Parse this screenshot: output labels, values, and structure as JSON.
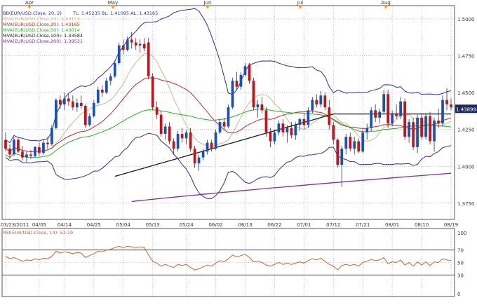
{
  "chart_data": {
    "type": "candlestick",
    "instrument": "EUR/USD",
    "legend": [
      {
        "name": "BB(EUR/USD.Close, 20, 2)",
        "extra": "TL: 1.45235   BL: 1.41095   AL: 1.43165",
        "color": "#2e3192"
      },
      {
        "name": "MVA(EUR/USD.Close,10): 1.43153",
        "color": "#c8b88c"
      },
      {
        "name": "MVA(EUR/USD.Close,20): 1.43165",
        "color": "#c0282d"
      },
      {
        "name": "MVA(EUR/USD.Close,50): 1.43014",
        "color": "#22b322"
      },
      {
        "name": "MVA(EUR/USD.Close,100): 1.43584",
        "color": "#1a1a1a"
      },
      {
        "name": "MVA(EUR/USD.Close,200): 1.39531",
        "color": "#7a2fa8"
      }
    ],
    "month_labels": [
      "Apr",
      "May",
      "Jun",
      "Jul",
      "Aug"
    ],
    "x_labels": [
      "03/23/2011",
      "04/05",
      "04/14",
      "04/25",
      "05/04",
      "05/13",
      "05/24",
      "06/02",
      "06/13",
      "06/22",
      "07/01",
      "07/12",
      "07/21",
      "08/01",
      "08/10",
      "08/19"
    ],
    "y_ticks": [
      "1.5000",
      "1.4750",
      "1.4500",
      "1.4250",
      "1.4000",
      "1.3750"
    ],
    "ylim": [
      1.364,
      1.509
    ],
    "last_price": "1.43899",
    "candles": [
      {
        "o": 1.418,
        "h": 1.423,
        "l": 1.41,
        "c": 1.412
      },
      {
        "o": 1.412,
        "h": 1.415,
        "l": 1.405,
        "c": 1.408
      },
      {
        "o": 1.408,
        "h": 1.42,
        "l": 1.407,
        "c": 1.418
      },
      {
        "o": 1.418,
        "h": 1.419,
        "l": 1.409,
        "c": 1.41
      },
      {
        "o": 1.41,
        "h": 1.414,
        "l": 1.404,
        "c": 1.406
      },
      {
        "o": 1.406,
        "h": 1.41,
        "l": 1.403,
        "c": 1.408
      },
      {
        "o": 1.408,
        "h": 1.411,
        "l": 1.405,
        "c": 1.407
      },
      {
        "o": 1.407,
        "h": 1.414,
        "l": 1.406,
        "c": 1.413
      },
      {
        "o": 1.413,
        "h": 1.416,
        "l": 1.407,
        "c": 1.409
      },
      {
        "o": 1.409,
        "h": 1.418,
        "l": 1.408,
        "c": 1.416
      },
      {
        "o": 1.416,
        "h": 1.42,
        "l": 1.412,
        "c": 1.415
      },
      {
        "o": 1.415,
        "h": 1.428,
        "l": 1.414,
        "c": 1.426
      },
      {
        "o": 1.426,
        "h": 1.446,
        "l": 1.425,
        "c": 1.445
      },
      {
        "o": 1.445,
        "h": 1.448,
        "l": 1.439,
        "c": 1.442
      },
      {
        "o": 1.442,
        "h": 1.45,
        "l": 1.438,
        "c": 1.446
      },
      {
        "o": 1.446,
        "h": 1.449,
        "l": 1.441,
        "c": 1.444
      },
      {
        "o": 1.444,
        "h": 1.448,
        "l": 1.438,
        "c": 1.44
      },
      {
        "o": 1.44,
        "h": 1.446,
        "l": 1.437,
        "c": 1.443
      },
      {
        "o": 1.443,
        "h": 1.448,
        "l": 1.439,
        "c": 1.441
      },
      {
        "o": 1.441,
        "h": 1.442,
        "l": 1.426,
        "c": 1.428
      },
      {
        "o": 1.428,
        "h": 1.436,
        "l": 1.427,
        "c": 1.434
      },
      {
        "o": 1.434,
        "h": 1.445,
        "l": 1.433,
        "c": 1.443
      },
      {
        "o": 1.443,
        "h": 1.454,
        "l": 1.442,
        "c": 1.452
      },
      {
        "o": 1.452,
        "h": 1.455,
        "l": 1.447,
        "c": 1.45
      },
      {
        "o": 1.45,
        "h": 1.46,
        "l": 1.449,
        "c": 1.458
      },
      {
        "o": 1.458,
        "h": 1.463,
        "l": 1.455,
        "c": 1.461
      },
      {
        "o": 1.461,
        "h": 1.472,
        "l": 1.46,
        "c": 1.47
      },
      {
        "o": 1.47,
        "h": 1.484,
        "l": 1.469,
        "c": 1.482
      },
      {
        "o": 1.482,
        "h": 1.486,
        "l": 1.476,
        "c": 1.479
      },
      {
        "o": 1.479,
        "h": 1.488,
        "l": 1.478,
        "c": 1.486
      },
      {
        "o": 1.486,
        "h": 1.491,
        "l": 1.48,
        "c": 1.484
      },
      {
        "o": 1.484,
        "h": 1.487,
        "l": 1.479,
        "c": 1.482
      },
      {
        "o": 1.482,
        "h": 1.486,
        "l": 1.477,
        "c": 1.483
      },
      {
        "o": 1.483,
        "h": 1.487,
        "l": 1.478,
        "c": 1.48
      },
      {
        "o": 1.484,
        "h": 1.487,
        "l": 1.459,
        "c": 1.461
      },
      {
        "o": 1.461,
        "h": 1.463,
        "l": 1.438,
        "c": 1.44
      },
      {
        "o": 1.44,
        "h": 1.444,
        "l": 1.432,
        "c": 1.435
      },
      {
        "o": 1.435,
        "h": 1.438,
        "l": 1.42,
        "c": 1.422
      },
      {
        "o": 1.422,
        "h": 1.429,
        "l": 1.418,
        "c": 1.427
      },
      {
        "o": 1.427,
        "h": 1.43,
        "l": 1.415,
        "c": 1.417
      },
      {
        "o": 1.417,
        "h": 1.419,
        "l": 1.408,
        "c": 1.412
      },
      {
        "o": 1.412,
        "h": 1.424,
        "l": 1.41,
        "c": 1.422
      },
      {
        "o": 1.422,
        "h": 1.426,
        "l": 1.416,
        "c": 1.419
      },
      {
        "o": 1.419,
        "h": 1.425,
        "l": 1.415,
        "c": 1.423
      },
      {
        "o": 1.423,
        "h": 1.426,
        "l": 1.41,
        "c": 1.412
      },
      {
        "o": 1.412,
        "h": 1.414,
        "l": 1.399,
        "c": 1.402
      },
      {
        "o": 1.402,
        "h": 1.408,
        "l": 1.397,
        "c": 1.406
      },
      {
        "o": 1.406,
        "h": 1.412,
        "l": 1.404,
        "c": 1.41
      },
      {
        "o": 1.41,
        "h": 1.418,
        "l": 1.408,
        "c": 1.416
      },
      {
        "o": 1.416,
        "h": 1.418,
        "l": 1.41,
        "c": 1.412
      },
      {
        "o": 1.412,
        "h": 1.425,
        "l": 1.411,
        "c": 1.423
      },
      {
        "o": 1.423,
        "h": 1.432,
        "l": 1.422,
        "c": 1.43
      },
      {
        "o": 1.43,
        "h": 1.433,
        "l": 1.425,
        "c": 1.427
      },
      {
        "o": 1.427,
        "h": 1.442,
        "l": 1.426,
        "c": 1.44
      },
      {
        "o": 1.44,
        "h": 1.46,
        "l": 1.439,
        "c": 1.458
      },
      {
        "o": 1.458,
        "h": 1.464,
        "l": 1.452,
        "c": 1.454
      },
      {
        "o": 1.454,
        "h": 1.464,
        "l": 1.452,
        "c": 1.462
      },
      {
        "o": 1.462,
        "h": 1.47,
        "l": 1.461,
        "c": 1.468
      },
      {
        "o": 1.469,
        "h": 1.47,
        "l": 1.456,
        "c": 1.458
      },
      {
        "o": 1.458,
        "h": 1.46,
        "l": 1.438,
        "c": 1.44
      },
      {
        "o": 1.44,
        "h": 1.445,
        "l": 1.433,
        "c": 1.442
      },
      {
        "o": 1.442,
        "h": 1.447,
        "l": 1.436,
        "c": 1.438
      },
      {
        "o": 1.438,
        "h": 1.44,
        "l": 1.42,
        "c": 1.423
      },
      {
        "o": 1.423,
        "h": 1.426,
        "l": 1.413,
        "c": 1.417
      },
      {
        "o": 1.417,
        "h": 1.425,
        "l": 1.415,
        "c": 1.423
      },
      {
        "o": 1.423,
        "h": 1.431,
        "l": 1.421,
        "c": 1.429
      },
      {
        "o": 1.429,
        "h": 1.432,
        "l": 1.42,
        "c": 1.423
      },
      {
        "o": 1.423,
        "h": 1.428,
        "l": 1.416,
        "c": 1.426
      },
      {
        "o": 1.426,
        "h": 1.43,
        "l": 1.419,
        "c": 1.421
      },
      {
        "o": 1.421,
        "h": 1.43,
        "l": 1.418,
        "c": 1.428
      },
      {
        "o": 1.428,
        "h": 1.433,
        "l": 1.424,
        "c": 1.432
      },
      {
        "o": 1.432,
        "h": 1.436,
        "l": 1.425,
        "c": 1.428
      },
      {
        "o": 1.428,
        "h": 1.44,
        "l": 1.426,
        "c": 1.438
      },
      {
        "o": 1.438,
        "h": 1.447,
        "l": 1.436,
        "c": 1.445
      },
      {
        "o": 1.445,
        "h": 1.449,
        "l": 1.44,
        "c": 1.442
      },
      {
        "o": 1.442,
        "h": 1.451,
        "l": 1.44,
        "c": 1.448
      },
      {
        "o": 1.448,
        "h": 1.45,
        "l": 1.438,
        "c": 1.44
      },
      {
        "o": 1.44,
        "h": 1.445,
        "l": 1.425,
        "c": 1.428
      },
      {
        "o": 1.428,
        "h": 1.43,
        "l": 1.415,
        "c": 1.418
      },
      {
        "o": 1.418,
        "h": 1.419,
        "l": 1.399,
        "c": 1.401
      },
      {
        "o": 1.401,
        "h": 1.414,
        "l": 1.386,
        "c": 1.412
      },
      {
        "o": 1.412,
        "h": 1.422,
        "l": 1.408,
        "c": 1.42
      },
      {
        "o": 1.42,
        "h": 1.423,
        "l": 1.41,
        "c": 1.412
      },
      {
        "o": 1.412,
        "h": 1.42,
        "l": 1.408,
        "c": 1.417
      },
      {
        "o": 1.417,
        "h": 1.419,
        "l": 1.409,
        "c": 1.41
      },
      {
        "o": 1.41,
        "h": 1.425,
        "l": 1.409,
        "c": 1.423
      },
      {
        "o": 1.423,
        "h": 1.429,
        "l": 1.418,
        "c": 1.426
      },
      {
        "o": 1.426,
        "h": 1.44,
        "l": 1.424,
        "c": 1.438
      },
      {
        "o": 1.438,
        "h": 1.442,
        "l": 1.43,
        "c": 1.433
      },
      {
        "o": 1.433,
        "h": 1.439,
        "l": 1.429,
        "c": 1.437
      },
      {
        "o": 1.437,
        "h": 1.452,
        "l": 1.436,
        "c": 1.449
      },
      {
        "o": 1.449,
        "h": 1.452,
        "l": 1.426,
        "c": 1.429
      },
      {
        "o": 1.429,
        "h": 1.438,
        "l": 1.427,
        "c": 1.436
      },
      {
        "o": 1.436,
        "h": 1.442,
        "l": 1.432,
        "c": 1.434
      },
      {
        "o": 1.434,
        "h": 1.447,
        "l": 1.432,
        "c": 1.444
      },
      {
        "o": 1.444,
        "h": 1.446,
        "l": 1.418,
        "c": 1.42
      },
      {
        "o": 1.42,
        "h": 1.432,
        "l": 1.416,
        "c": 1.43
      },
      {
        "o": 1.43,
        "h": 1.433,
        "l": 1.411,
        "c": 1.413
      },
      {
        "o": 1.413,
        "h": 1.435,
        "l": 1.409,
        "c": 1.433
      },
      {
        "o": 1.433,
        "h": 1.436,
        "l": 1.418,
        "c": 1.42
      },
      {
        "o": 1.42,
        "h": 1.436,
        "l": 1.418,
        "c": 1.434
      },
      {
        "o": 1.434,
        "h": 1.437,
        "l": 1.415,
        "c": 1.417
      },
      {
        "o": 1.417,
        "h": 1.433,
        "l": 1.41,
        "c": 1.431
      },
      {
        "o": 1.431,
        "h": 1.439,
        "l": 1.426,
        "c": 1.429
      },
      {
        "o": 1.429,
        "h": 1.448,
        "l": 1.427,
        "c": 1.445
      },
      {
        "o": 1.445,
        "h": 1.453,
        "l": 1.438,
        "c": 1.442
      },
      {
        "o": 1.442,
        "h": 1.446,
        "l": 1.438,
        "c": 1.44
      }
    ],
    "rsi": {
      "label": "RSI(EUR/USD.Close, 14): 53.29",
      "y_ticks": [
        "100",
        "70",
        "50",
        "30",
        "0"
      ],
      "ylim": [
        0,
        100
      ],
      "color": "#c0652d",
      "values": [
        60,
        56,
        58,
        55,
        52,
        54,
        53,
        56,
        54,
        57,
        56,
        60,
        68,
        65,
        67,
        66,
        64,
        66,
        65,
        58,
        61,
        64,
        68,
        67,
        70,
        71,
        74,
        76,
        74,
        76,
        75,
        74,
        75,
        74,
        62,
        52,
        49,
        44,
        47,
        44,
        42,
        47,
        45,
        47,
        42,
        38,
        40,
        43,
        46,
        44,
        49,
        53,
        51,
        56,
        62,
        59,
        61,
        63,
        58,
        51,
        52,
        50,
        46,
        44,
        47,
        50,
        47,
        49,
        47,
        49,
        51,
        49,
        53,
        56,
        54,
        57,
        52,
        47,
        44,
        38,
        45,
        47,
        45,
        47,
        44,
        50,
        52,
        55,
        53,
        54,
        58,
        48,
        51,
        50,
        54,
        46,
        50,
        44,
        51,
        46,
        51,
        45,
        51,
        50,
        56,
        54,
        53
      ]
    },
    "colors": {
      "up": "#1a4fb4",
      "down": "#c2131d",
      "grid": "#9a9a9a",
      "axis_text": "#333333"
    }
  }
}
